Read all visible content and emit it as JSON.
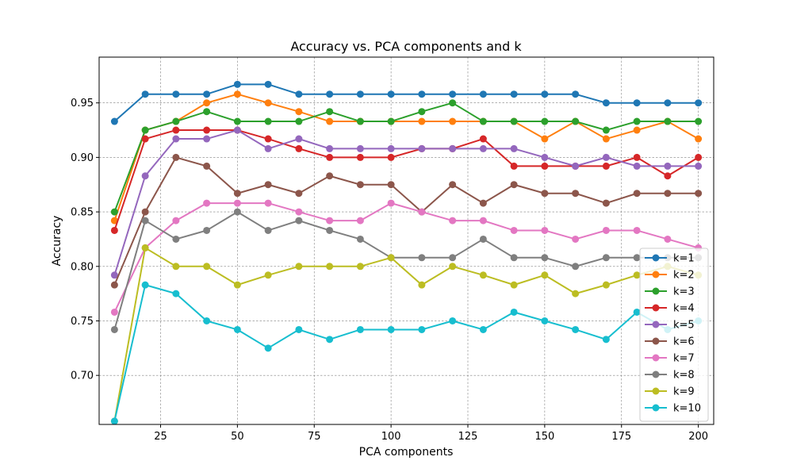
{
  "chart_data": {
    "type": "line",
    "title": "Accuracy vs. PCA components and k",
    "xlabel": "PCA components",
    "ylabel": "Accuracy",
    "xlim": [
      5,
      205
    ],
    "ylim": [
      0.655,
      0.992
    ],
    "xticks": [
      25,
      50,
      75,
      100,
      125,
      150,
      175,
      200
    ],
    "yticks": [
      0.7,
      0.75,
      0.8,
      0.85,
      0.9,
      0.95
    ],
    "grid": true,
    "legend_position": "lower-right",
    "x": [
      10,
      20,
      30,
      40,
      50,
      60,
      70,
      80,
      90,
      100,
      110,
      120,
      130,
      140,
      150,
      160,
      170,
      180,
      190,
      200
    ],
    "series": [
      {
        "name": "k=1",
        "color": "#1f77b4",
        "values": [
          0.933,
          0.958,
          0.958,
          0.958,
          0.967,
          0.967,
          0.958,
          0.958,
          0.958,
          0.958,
          0.958,
          0.958,
          0.958,
          0.958,
          0.958,
          0.958,
          0.95,
          0.95,
          0.95,
          0.95
        ]
      },
      {
        "name": "k=2",
        "color": "#ff7f0e",
        "values": [
          0.842,
          0.925,
          0.933,
          0.95,
          0.958,
          0.95,
          0.942,
          0.933,
          0.933,
          0.933,
          0.933,
          0.933,
          0.933,
          0.933,
          0.917,
          0.933,
          0.917,
          0.925,
          0.933,
          0.917
        ]
      },
      {
        "name": "k=3",
        "color": "#2ca02c",
        "values": [
          0.85,
          0.925,
          0.933,
          0.942,
          0.933,
          0.933,
          0.933,
          0.942,
          0.933,
          0.933,
          0.942,
          0.95,
          0.933,
          0.933,
          0.933,
          0.933,
          0.925,
          0.933,
          0.933,
          0.933
        ]
      },
      {
        "name": "k=4",
        "color": "#d62728",
        "values": [
          0.833,
          0.917,
          0.925,
          0.925,
          0.925,
          0.917,
          0.908,
          0.9,
          0.9,
          0.9,
          0.908,
          0.908,
          0.917,
          0.892,
          0.892,
          0.892,
          0.892,
          0.9,
          0.883,
          0.9
        ]
      },
      {
        "name": "k=5",
        "color": "#9467bd",
        "values": [
          0.792,
          0.883,
          0.917,
          0.917,
          0.925,
          0.908,
          0.917,
          0.908,
          0.908,
          0.908,
          0.908,
          0.908,
          0.908,
          0.908,
          0.9,
          0.892,
          0.9,
          0.892,
          0.892,
          0.892
        ]
      },
      {
        "name": "k=6",
        "color": "#8c564b",
        "values": [
          0.783,
          0.85,
          0.9,
          0.892,
          0.867,
          0.875,
          0.867,
          0.883,
          0.875,
          0.875,
          0.85,
          0.875,
          0.858,
          0.875,
          0.867,
          0.867,
          0.858,
          0.867,
          0.867,
          0.867
        ]
      },
      {
        "name": "k=7",
        "color": "#e377c2",
        "values": [
          0.758,
          0.817,
          0.842,
          0.858,
          0.858,
          0.858,
          0.85,
          0.842,
          0.842,
          0.858,
          0.85,
          0.842,
          0.842,
          0.833,
          0.833,
          0.825,
          0.833,
          0.833,
          0.825,
          0.817
        ]
      },
      {
        "name": "k=8",
        "color": "#7f7f7f",
        "values": [
          0.742,
          0.842,
          0.825,
          0.833,
          0.85,
          0.833,
          0.842,
          0.833,
          0.825,
          0.808,
          0.808,
          0.808,
          0.825,
          0.808,
          0.808,
          0.8,
          0.808,
          0.808,
          0.808,
          0.808
        ]
      },
      {
        "name": "k=9",
        "color": "#bcbd22",
        "values": [
          0.658,
          0.817,
          0.8,
          0.8,
          0.783,
          0.792,
          0.8,
          0.8,
          0.8,
          0.808,
          0.783,
          0.8,
          0.792,
          0.783,
          0.792,
          0.775,
          0.783,
          0.792,
          0.8,
          0.792
        ]
      },
      {
        "name": "k=10",
        "color": "#17becf",
        "values": [
          0.658,
          0.783,
          0.775,
          0.75,
          0.742,
          0.725,
          0.742,
          0.733,
          0.742,
          0.742,
          0.742,
          0.75,
          0.742,
          0.758,
          0.75,
          0.742,
          0.733,
          0.758,
          0.742,
          0.75
        ]
      }
    ]
  }
}
